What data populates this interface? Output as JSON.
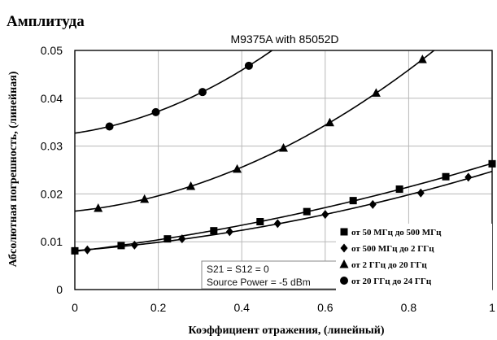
{
  "heading": "Амплитуда",
  "chart_data": {
    "type": "line",
    "title": "M9375A with 85052D",
    "xlabel": "Коэффициент отражения, (линейный)",
    "ylabel": "Абсолютная погрешность, (линейная)",
    "xlim": [
      0,
      1
    ],
    "ylim": [
      0,
      0.05
    ],
    "xticks": [
      0,
      0.2,
      0.4,
      0.6,
      0.8,
      1
    ],
    "xtick_labels": [
      "0",
      "0.2",
      "0.4",
      "0.6",
      "0.8",
      "1"
    ],
    "yticks": [
      0,
      0.01,
      0.02,
      0.03,
      0.04,
      0.05
    ],
    "ytick_labels": [
      "0",
      "0.01",
      "0.02",
      "0.03",
      "0.04",
      "0.05"
    ],
    "grid": true,
    "legend_position": "bottom-right",
    "annotation_lines": [
      "S21 = S12 = 0",
      "Source Power = -5 dBm"
    ],
    "series": [
      {
        "name": "от 50 МГц до 500 МГц",
        "marker": "square",
        "x": [
          0,
          0.111,
          0.222,
          0.333,
          0.444,
          0.556,
          0.667,
          0.778,
          0.889,
          1.0
        ],
        "y": [
          0.0081,
          0.0092,
          0.0106,
          0.0123,
          0.0142,
          0.0163,
          0.0186,
          0.021,
          0.0236,
          0.0263
        ]
      },
      {
        "name": "от 500 МГц до 2 ГГц",
        "marker": "diamond",
        "x": [
          0,
          0.03,
          0.143,
          0.257,
          0.371,
          0.486,
          0.6,
          0.714,
          0.829,
          0.943
        ],
        "y": [
          0.0081,
          0.0083,
          0.0093,
          0.0106,
          0.0121,
          0.0138,
          0.0157,
          0.0178,
          0.0202,
          0.0235
        ]
      },
      {
        "name": "от 2 ГГц до 20 ГГц",
        "marker": "triangle",
        "x": [
          0.056,
          0.167,
          0.278,
          0.389,
          0.5,
          0.611,
          0.722,
          0.833
        ],
        "y": [
          0.017,
          0.0189,
          0.0216,
          0.0252,
          0.0296,
          0.0349,
          0.0411,
          0.0481
        ]
      },
      {
        "name": "от 20 ГГц до 24 ГГц",
        "marker": "circle",
        "x": [
          0.083,
          0.194,
          0.306,
          0.417
        ],
        "y": [
          0.0341,
          0.0371,
          0.0413,
          0.0468
        ]
      }
    ]
  }
}
